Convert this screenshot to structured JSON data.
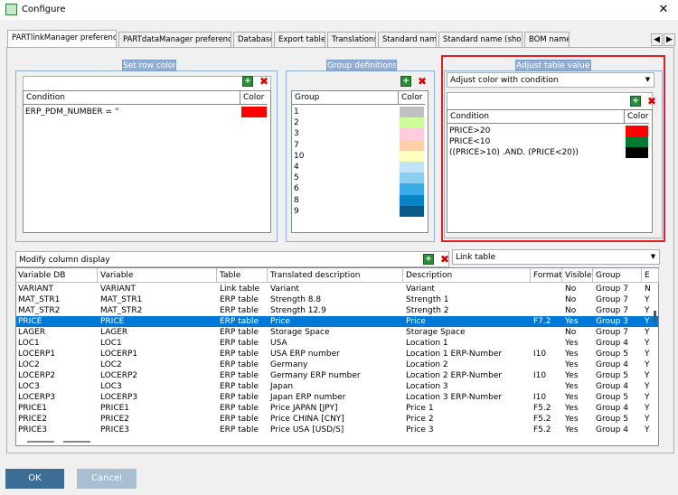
{
  "window": {
    "title": "Configure"
  },
  "tabs": [
    "PARTlinkManager preferences",
    "PARTdataManager preferences",
    "Database",
    "Export tables",
    "Translations",
    "Standard name",
    "Standard name (short)",
    "BOM name"
  ],
  "set_row_color": {
    "title": "Set row color",
    "headers": [
      "Condition",
      "Color"
    ],
    "rows": [
      {
        "condition": "ERP_PDM_NUMBER = ''",
        "color": "#ff0000"
      }
    ]
  },
  "group_definitions": {
    "title": "Group definitions",
    "headers": [
      "Group",
      "Color"
    ],
    "rows": [
      {
        "group": "1",
        "color": "#c0c0c0"
      },
      {
        "group": "2",
        "color": "#ccff99"
      },
      {
        "group": "3",
        "color": "#ffccdd"
      },
      {
        "group": "7",
        "color": "#ffd0a8"
      },
      {
        "group": "10",
        "color": "#ffffc0"
      },
      {
        "group": "4",
        "color": "#c0e4f8"
      },
      {
        "group": "5",
        "color": "#8ccff0"
      },
      {
        "group": "6",
        "color": "#3aaae8"
      },
      {
        "group": "8",
        "color": "#0a84c8"
      },
      {
        "group": "9",
        "color": "#0a5a8a"
      }
    ]
  },
  "adjust_table_values": {
    "title": "Adjust table values",
    "mode": "Adjust color with condition",
    "headers": [
      "Condition",
      "Color"
    ],
    "rows": [
      {
        "condition": "PRICE>20",
        "color": "#ff0000"
      },
      {
        "condition": "PRICE<10",
        "color": "#007a33"
      },
      {
        "condition": "((PRICE>10) .AND. (PRICE<20))",
        "color": "#000000"
      }
    ]
  },
  "column_display": {
    "title": "Modify column display",
    "table_select": "Link table",
    "headers": [
      "Variable DB",
      "Variable",
      "Table",
      "Translated description",
      "Description",
      "Format",
      "Visible",
      "Group",
      "E"
    ],
    "selected_row": 3,
    "rows": [
      [
        "VARIANT",
        "VARIANT",
        "Link table",
        "Variant",
        "Variant",
        null,
        "No",
        "Group 7",
        "N"
      ],
      [
        "MAT_STR1",
        "MAT_STR1",
        "ERP table",
        "Strength 8.8",
        "Strength 1",
        null,
        "No",
        "Group 7",
        "Y"
      ],
      [
        "MAT_STR2",
        "MAT_STR2",
        "ERP table",
        "Strength 12.9",
        "Strength 2",
        null,
        "No",
        "Group 7",
        "Y"
      ],
      [
        "PRICE",
        "PRICE",
        "ERP table",
        "Price",
        "Price",
        "F7.2",
        "Yes",
        "Group 3",
        "Y"
      ],
      [
        "LAGER",
        "LAGER",
        "ERP table",
        "Storage Space",
        "Storage Space",
        null,
        "No",
        "Group 7",
        "Y"
      ],
      [
        "LOC1",
        "LOC1",
        "ERP table",
        "USA",
        "Location 1",
        null,
        "Yes",
        "Group 4",
        "Y"
      ],
      [
        "LOCERP1",
        "LOCERP1",
        "ERP table",
        "USA ERP number",
        "Location 1 ERP-Number",
        "I10",
        "Yes",
        "Group 5",
        "Y"
      ],
      [
        "LOC2",
        "LOC2",
        "ERP table",
        "Germany",
        "Location 2",
        null,
        "Yes",
        "Group 4",
        "Y"
      ],
      [
        "LOCERP2",
        "LOCERP2",
        "ERP table",
        "Germany ERP number",
        "Location 2 ERP-Number",
        "I10",
        "Yes",
        "Group 5",
        "Y"
      ],
      [
        "LOC3",
        "LOC3",
        "ERP table",
        "Japan",
        "Location 3",
        null,
        "Yes",
        "Group 4",
        "Y"
      ],
      [
        "LOCERP3",
        "LOCERP3",
        "ERP table",
        "Japan ERP number",
        "Location 3 ERP-Number",
        "I10",
        "Yes",
        "Group 5",
        "Y"
      ],
      [
        "PRICE1",
        "PRICE1",
        "ERP table",
        "Price JAPAN [JPY]",
        "Price 1",
        "F5.2",
        "Yes",
        "Group 4",
        "Y"
      ],
      [
        "PRICE2",
        "PRICE2",
        "ERP table",
        "Price CHINA [CNY]",
        "Price 2",
        "F5.2",
        "Yes",
        "Group 5",
        "Y"
      ],
      [
        "PRICE3",
        "PRICE3",
        "ERP table",
        "Price USA [USD/S]",
        "Price 3",
        "F5.2",
        "Yes",
        "Group 4",
        "Y"
      ]
    ]
  },
  "buttons": {
    "ok": "OK",
    "cancel": "Cancel"
  }
}
